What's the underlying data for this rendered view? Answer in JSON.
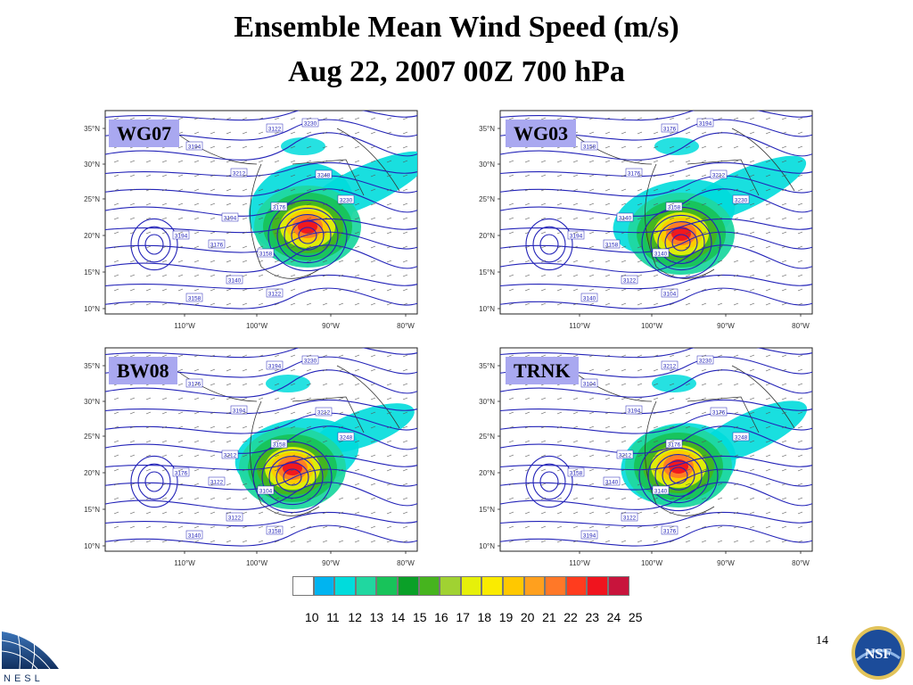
{
  "slide": {
    "title_line1": "Ensemble Mean Wind Speed (m/s)",
    "title_line2": "Aug 22, 2007 00Z 700 hPa",
    "page_number": "14",
    "logos": [
      "nesl-logo",
      "nsf-logo"
    ]
  },
  "map_common": {
    "lat_labels": [
      "35°N",
      "30°N",
      "25°N",
      "20°N",
      "15°N",
      "10°N"
    ],
    "lon_labels": [
      "110°W",
      "100°W",
      "90°W",
      "80°W"
    ]
  },
  "panels": [
    {
      "label": "WG07",
      "contour_labels": [
        "3122",
        "3230",
        "3194",
        "3212",
        "3248",
        "3230",
        "3194",
        "3176",
        "3194",
        "3176",
        "3158",
        "3140",
        "3158",
        "3122"
      ]
    },
    {
      "label": "WG03",
      "contour_labels": [
        "3176",
        "3194",
        "3158",
        "3176",
        "3212",
        "3230",
        "3140",
        "3158",
        "3194",
        "3158",
        "3140",
        "3122",
        "3140",
        "3104"
      ]
    },
    {
      "label": "BW08",
      "contour_labels": [
        "3194",
        "3230",
        "3176",
        "3194",
        "3212",
        "3248",
        "3212",
        "3158",
        "3176",
        "3122",
        "3104",
        "3122",
        "3140",
        "3158"
      ]
    },
    {
      "label": "TRNK",
      "contour_labels": [
        "3212",
        "3230",
        "3104",
        "3194",
        "3176",
        "3248",
        "3212",
        "3176",
        "3158",
        "3140",
        "3140",
        "3122",
        "3194",
        "3176"
      ]
    }
  ],
  "colorbar": {
    "labels": [
      "10",
      "11",
      "12",
      "13",
      "14",
      "15",
      "16",
      "17",
      "18",
      "19",
      "20",
      "21",
      "22",
      "23",
      "24",
      "25"
    ],
    "colors": [
      "#ffffff",
      "#00b4f0",
      "#00dcdc",
      "#20d7a0",
      "#18c35a",
      "#0aa028",
      "#46b41e",
      "#a0d232",
      "#e6f00a",
      "#faeb00",
      "#ffc800",
      "#ffa01e",
      "#ff7828",
      "#ff3c1e",
      "#f0141e",
      "#c8143c"
    ]
  }
}
